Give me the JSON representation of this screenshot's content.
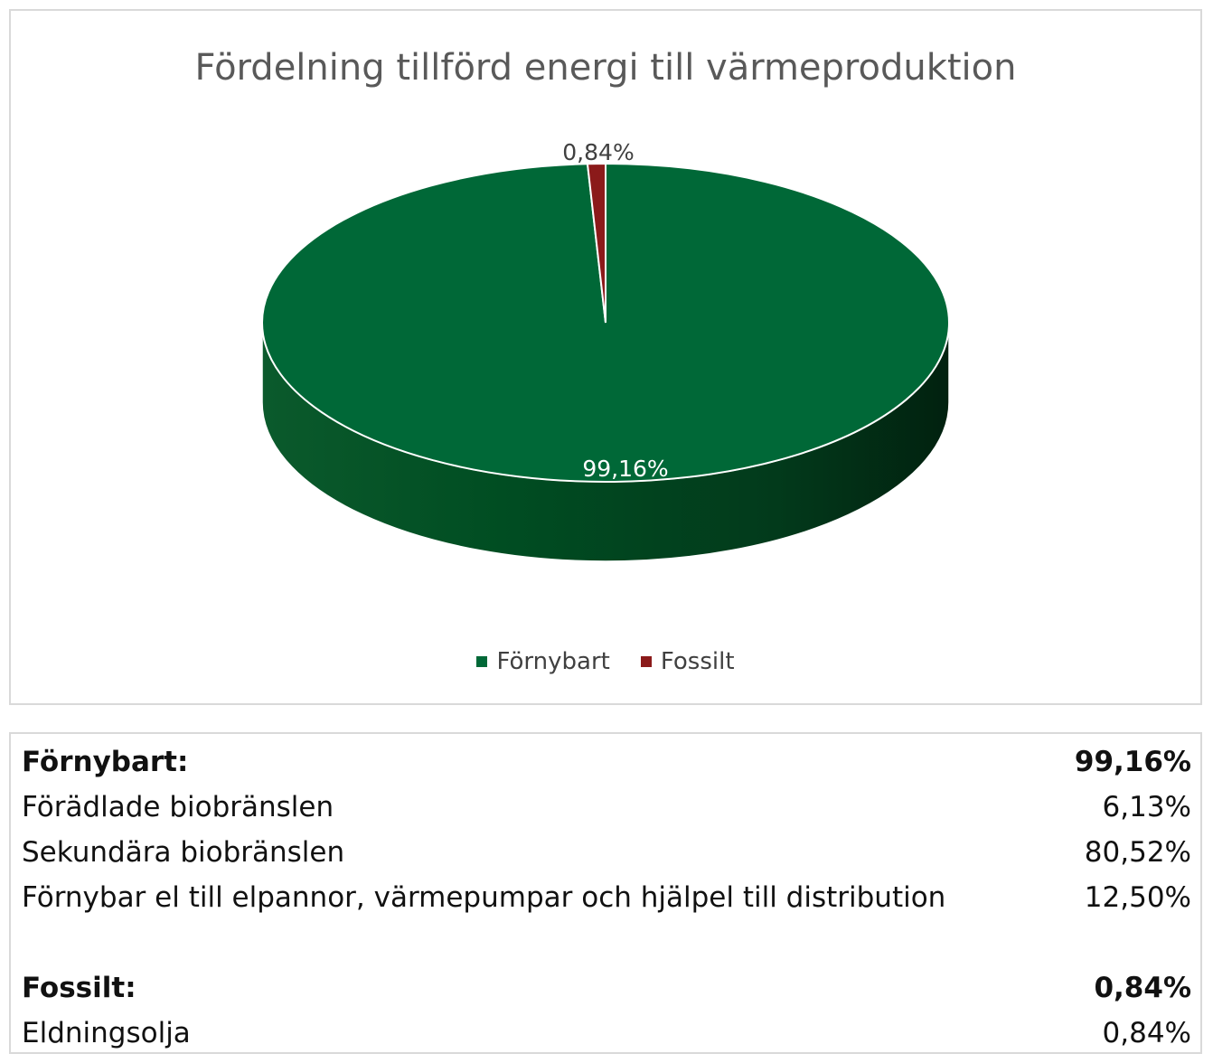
{
  "chart_data": {
    "type": "pie",
    "title": "Fördelning tillförd energi till värmeproduktion",
    "slices": [
      {
        "name": "Förnybart",
        "value": 99.16,
        "label": "99,16%",
        "color": "#006837"
      },
      {
        "name": "Fossilt",
        "value": 0.84,
        "label": "0,84%",
        "color": "#8b1a1a"
      }
    ],
    "legend": [
      "Förnybart",
      "Fossilt"
    ],
    "legend_placement": "bottom"
  },
  "table": {
    "rows": [
      {
        "label": "Förnybart:",
        "value": "99,16%",
        "bold": true
      },
      {
        "label": "Förädlade biobränslen",
        "value": "6,13%",
        "bold": false
      },
      {
        "label": "Sekundära biobränslen",
        "value": "80,52%",
        "bold": false
      },
      {
        "label": "Förnybar el till elpannor, värmepumpar och hjälpel till distribution",
        "value": "12,50%",
        "bold": false
      },
      {
        "label": "",
        "value": "",
        "bold": false
      },
      {
        "label": "Fossilt:",
        "value": "0,84%",
        "bold": true
      },
      {
        "label": "Eldningsolja",
        "value": "0,84%",
        "bold": false
      }
    ]
  }
}
